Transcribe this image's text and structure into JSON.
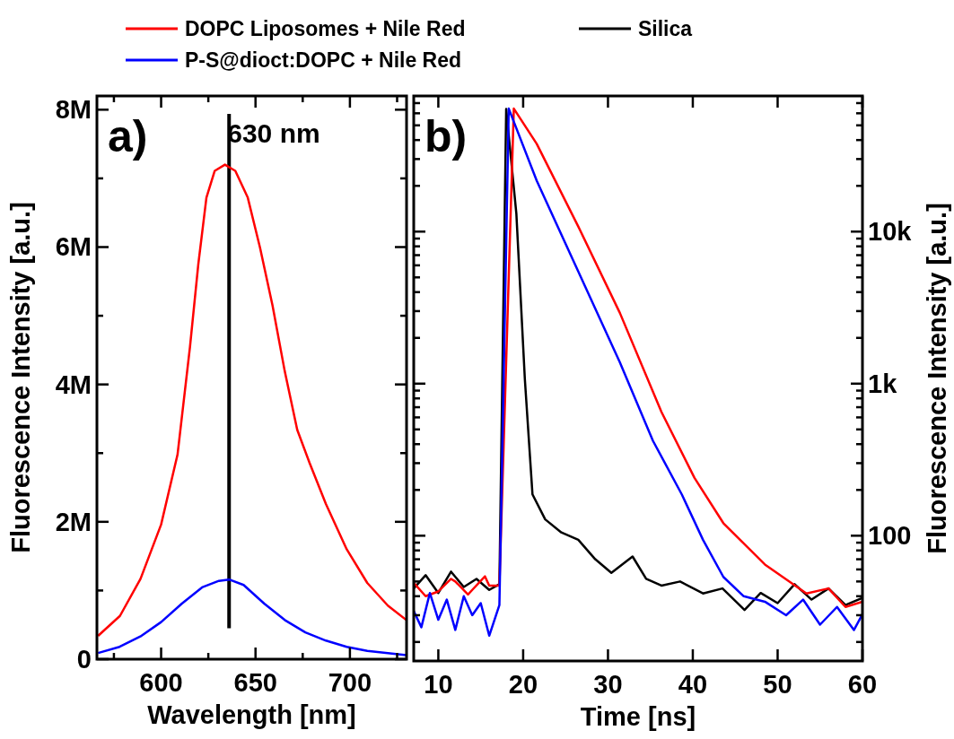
{
  "chart_data": [
    {
      "type": "line",
      "title": "a)",
      "legend": "top",
      "xlabel": "Wavelength [nm]",
      "ylabel": "Fluorescence Intensity [a.u.]",
      "xlim": [
        566,
        730
      ],
      "ylim": [
        0,
        8200000
      ],
      "xticks": [
        {
          "value": 575,
          "label": null
        },
        600,
        {
          "value": 625,
          "label": null
        },
        650,
        {
          "value": 675,
          "label": null
        },
        700,
        {
          "value": 725,
          "label": null
        }
      ],
      "yticks": [
        0,
        {
          "value": 1000000,
          "label": null
        },
        {
          "value": 2000000,
          "label": "2M"
        },
        {
          "value": 3000000,
          "label": null
        },
        {
          "value": 4000000,
          "label": "4M"
        },
        {
          "value": 5000000,
          "label": null
        },
        {
          "value": 6000000,
          "label": "6M"
        },
        {
          "value": 7000000,
          "label": null
        },
        {
          "value": 8000000,
          "label": "8M"
        }
      ],
      "ref_lines": [
        {
          "axis": "x",
          "value": 636,
          "label": "630 nm",
          "color": "#000000"
        }
      ],
      "series": [
        {
          "name": "DOPC Liposomes + Nile Red",
          "color": "#ff0000",
          "x": [
            566.6,
            578.2,
            589.1,
            600,
            608.7,
            615.3,
            619.7,
            624,
            628.4,
            633.8,
            639.3,
            645.9,
            652.4,
            659,
            665.5,
            672.1,
            678.6,
            687.3,
            698.3,
            709.2,
            720.1,
            729.9
          ],
          "values": [
            340000,
            630000,
            1170000,
            1960000,
            2980000,
            4550000,
            5750000,
            6720000,
            7110000,
            7200000,
            7110000,
            6720000,
            5990000,
            5150000,
            4190000,
            3340000,
            2860000,
            2260000,
            1600000,
            1110000,
            780000,
            570000
          ]
        },
        {
          "name": "P-S@dioct:DOPC + Nile Red",
          "color": "#0000ff",
          "x": [
            566.6,
            578,
            589,
            600,
            611,
            622,
            630.6,
            636,
            643.7,
            654.6,
            665.5,
            676.4,
            687.3,
            698.3,
            709.2,
            729.9
          ],
          "values": [
            90000,
            180000,
            330000,
            540000,
            810000,
            1050000,
            1140000,
            1160000,
            1080000,
            810000,
            570000,
            390000,
            270000,
            180000,
            120000,
            60000
          ]
        }
      ]
    },
    {
      "type": "line",
      "title": "b)",
      "xlabel": "Time [ns]",
      "y2label": "Fluorescence Intensity [a.u.]",
      "xlim": [
        7.1,
        60
      ],
      "y2lim": [
        15,
        78000
      ],
      "log": "y2",
      "legend": "top",
      "xticks": [
        10,
        20,
        30,
        40,
        50,
        60
      ],
      "y2ticks": [
        {
          "value": 20,
          "label": null
        },
        {
          "value": 30,
          "label": null
        },
        {
          "value": 40,
          "label": null
        },
        {
          "value": 50,
          "label": null
        },
        {
          "value": 60,
          "label": null
        },
        {
          "value": 70,
          "label": null
        },
        {
          "value": 80,
          "label": null
        },
        {
          "value": 90,
          "label": null
        },
        100,
        {
          "value": 200,
          "label": null
        },
        {
          "value": 300,
          "label": null
        },
        {
          "value": 400,
          "label": null
        },
        {
          "value": 500,
          "label": null
        },
        {
          "value": 600,
          "label": null
        },
        {
          "value": 700,
          "label": null
        },
        {
          "value": 800,
          "label": null
        },
        {
          "value": 900,
          "label": null
        },
        {
          "value": 1000,
          "label": "1k"
        },
        {
          "value": 2000,
          "label": null
        },
        {
          "value": 3000,
          "label": null
        },
        {
          "value": 4000,
          "label": null
        },
        {
          "value": 5000,
          "label": null
        },
        {
          "value": 6000,
          "label": null
        },
        {
          "value": 7000,
          "label": null
        },
        {
          "value": 8000,
          "label": null
        },
        {
          "value": 9000,
          "label": null
        },
        {
          "value": 10000,
          "label": "10k"
        },
        {
          "value": 20000,
          "label": null
        },
        {
          "value": 30000,
          "label": null
        },
        {
          "value": 40000,
          "label": null
        },
        {
          "value": 50000,
          "label": null
        },
        {
          "value": 60000,
          "label": null
        },
        {
          "value": 70000,
          "label": null
        }
      ],
      "series": [
        {
          "name": "Silica",
          "color": "#000000",
          "axis": "y2",
          "x": [
            7.1,
            8.5,
            10,
            11.5,
            13,
            14.5,
            16,
            17.2,
            18,
            19.2,
            20.2,
            21.1,
            22.6,
            24.5,
            26.5,
            28.5,
            30.4,
            32.9,
            34.5,
            36.3,
            38.5,
            41.2,
            43.5,
            46.1,
            48,
            50,
            52,
            54,
            56,
            58,
            60
          ],
          "values": [
            45,
            55,
            42,
            58,
            46,
            52,
            44,
            48,
            64000,
            13100,
            1070,
            187,
            128,
            105,
            94,
            70,
            57,
            73,
            52,
            47,
            50,
            41.7,
            45,
            32.5,
            42,
            36,
            48,
            38,
            45,
            35,
            39
          ]
        },
        {
          "color": "#ff0000",
          "axis": "y2",
          "x": [
            7.1,
            8.5,
            10,
            11.5,
            12,
            13.5,
            14,
            15.5,
            16,
            17.2,
            18.9,
            21.6,
            26.5,
            31.4,
            36.3,
            40.2,
            43.6,
            48.5,
            53.4,
            56,
            58,
            60
          ],
          "values": [
            49,
            40,
            43,
            52,
            50,
            41,
            44,
            54,
            47,
            47,
            64400,
            37800,
            10800,
            2920,
            652,
            240,
            121,
            64.6,
            41.7,
            45,
            34,
            36.8
          ]
        },
        {
          "color": "#0000ff",
          "axis": "y2",
          "x": [
            7.1,
            8,
            9,
            10,
            11,
            12,
            13,
            14,
            15,
            16,
            17.2,
            18.3,
            21.6,
            26.5,
            31.4,
            35.3,
            38.7,
            41.2,
            43.6,
            46,
            48.5,
            51,
            53,
            55,
            57,
            59,
            60
          ],
          "values": [
            32,
            25,
            42,
            28,
            38,
            24,
            40,
            30,
            36,
            22,
            35,
            64400,
            21600,
            5460,
            1380,
            421,
            187,
            94,
            53.6,
            40,
            36.8,
            30,
            38,
            26,
            34,
            24,
            30.5
          ]
        }
      ]
    }
  ]
}
